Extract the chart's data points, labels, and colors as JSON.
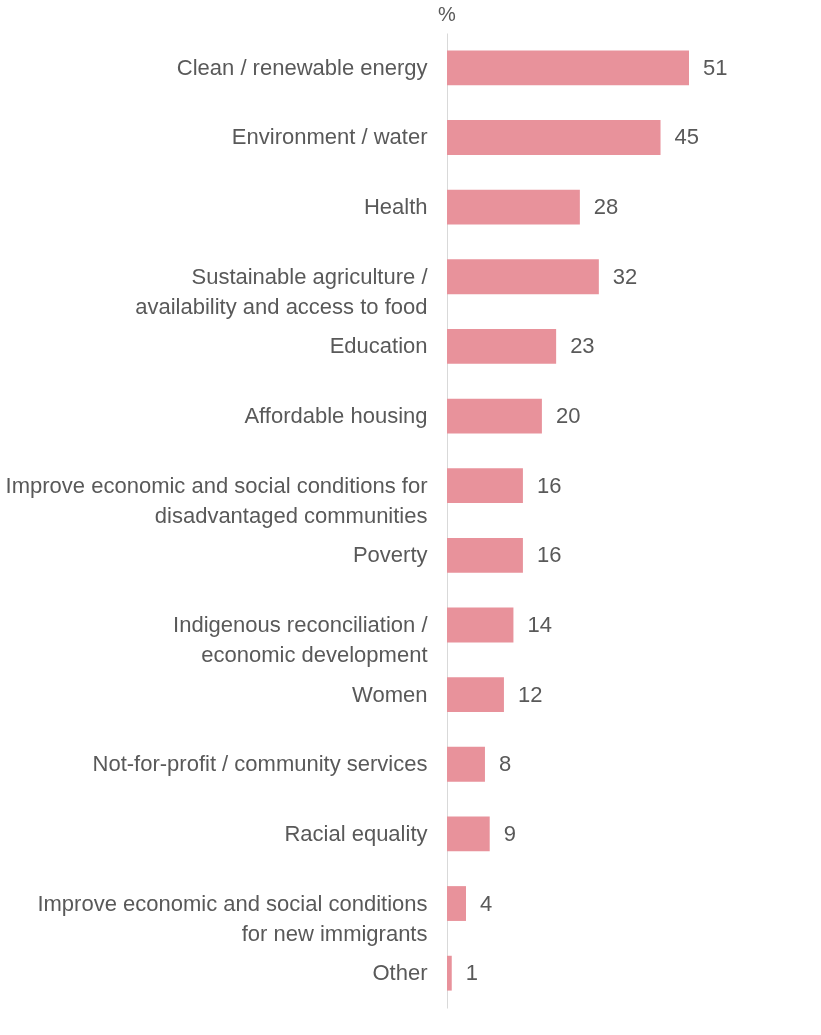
{
  "chart_data": {
    "type": "bar",
    "orientation": "horizontal",
    "data_labels": true,
    "color": "#e8929b",
    "annotations": [
      "%"
    ],
    "categories": [
      "Clean / renewable energy",
      "Environment / water",
      "Health",
      "Sustainable agriculture /\navailability and access to food",
      "Education",
      "Affordable housing",
      "Improve economic and social conditions for\ndisadvantaged communities",
      "Poverty",
      "Indigenous reconciliation /\neconomic development",
      "Women",
      "Not-for-profit / community services",
      "Racial equality",
      "Improve economic and social conditions\nfor new immigrants",
      "Other"
    ],
    "values": [
      51,
      45,
      28,
      32,
      23,
      20,
      16,
      16,
      14,
      12,
      8,
      9,
      4,
      1
    ]
  }
}
